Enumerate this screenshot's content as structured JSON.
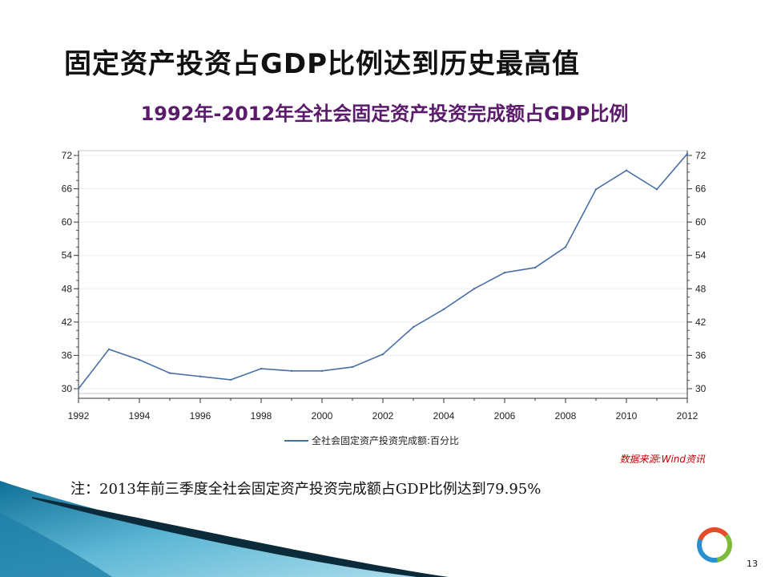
{
  "slide": {
    "title": "固定资产投资占GDP比例达到历史最高值",
    "note": "注：2013年前三季度全社会固定资产投资完成额占GDP比例达到79.95%",
    "source": "数据来源:Wind资讯",
    "page_number": "13"
  },
  "colors": {
    "line": "#4a6fa5",
    "title_purple": "#5b1a6b",
    "source_red": "#c00000",
    "decor_teal": "#1f7fa8",
    "decor_dark": "#0b2a3a"
  },
  "chart_data": {
    "type": "line",
    "title": "1992年-2012年全社会固定资产投资完成额占GDP比例",
    "x": [
      1992,
      1993,
      1994,
      1995,
      1996,
      1997,
      1998,
      1999,
      2000,
      2001,
      2002,
      2003,
      2004,
      2005,
      2006,
      2007,
      2008,
      2009,
      2010,
      2011,
      2012
    ],
    "series": [
      {
        "name": "全社会固定资产投资完成额:百分比",
        "values": [
          30.0,
          37.1,
          35.2,
          32.8,
          32.2,
          31.6,
          33.6,
          33.2,
          33.2,
          33.9,
          36.2,
          41.1,
          44.3,
          48.0,
          50.9,
          51.8,
          55.5,
          65.9,
          69.3,
          65.9,
          72.3
        ]
      }
    ],
    "xticks": [
      "1992",
      "1994",
      "1996",
      "1998",
      "2000",
      "2002",
      "2004",
      "2006",
      "2008",
      "2010",
      "2012"
    ],
    "yticks": [
      "30",
      "36",
      "42",
      "48",
      "54",
      "60",
      "66",
      "72"
    ],
    "xlim": [
      1992,
      2012
    ],
    "ylim": [
      30,
      72
    ],
    "grid": true,
    "legend": "bottom"
  }
}
